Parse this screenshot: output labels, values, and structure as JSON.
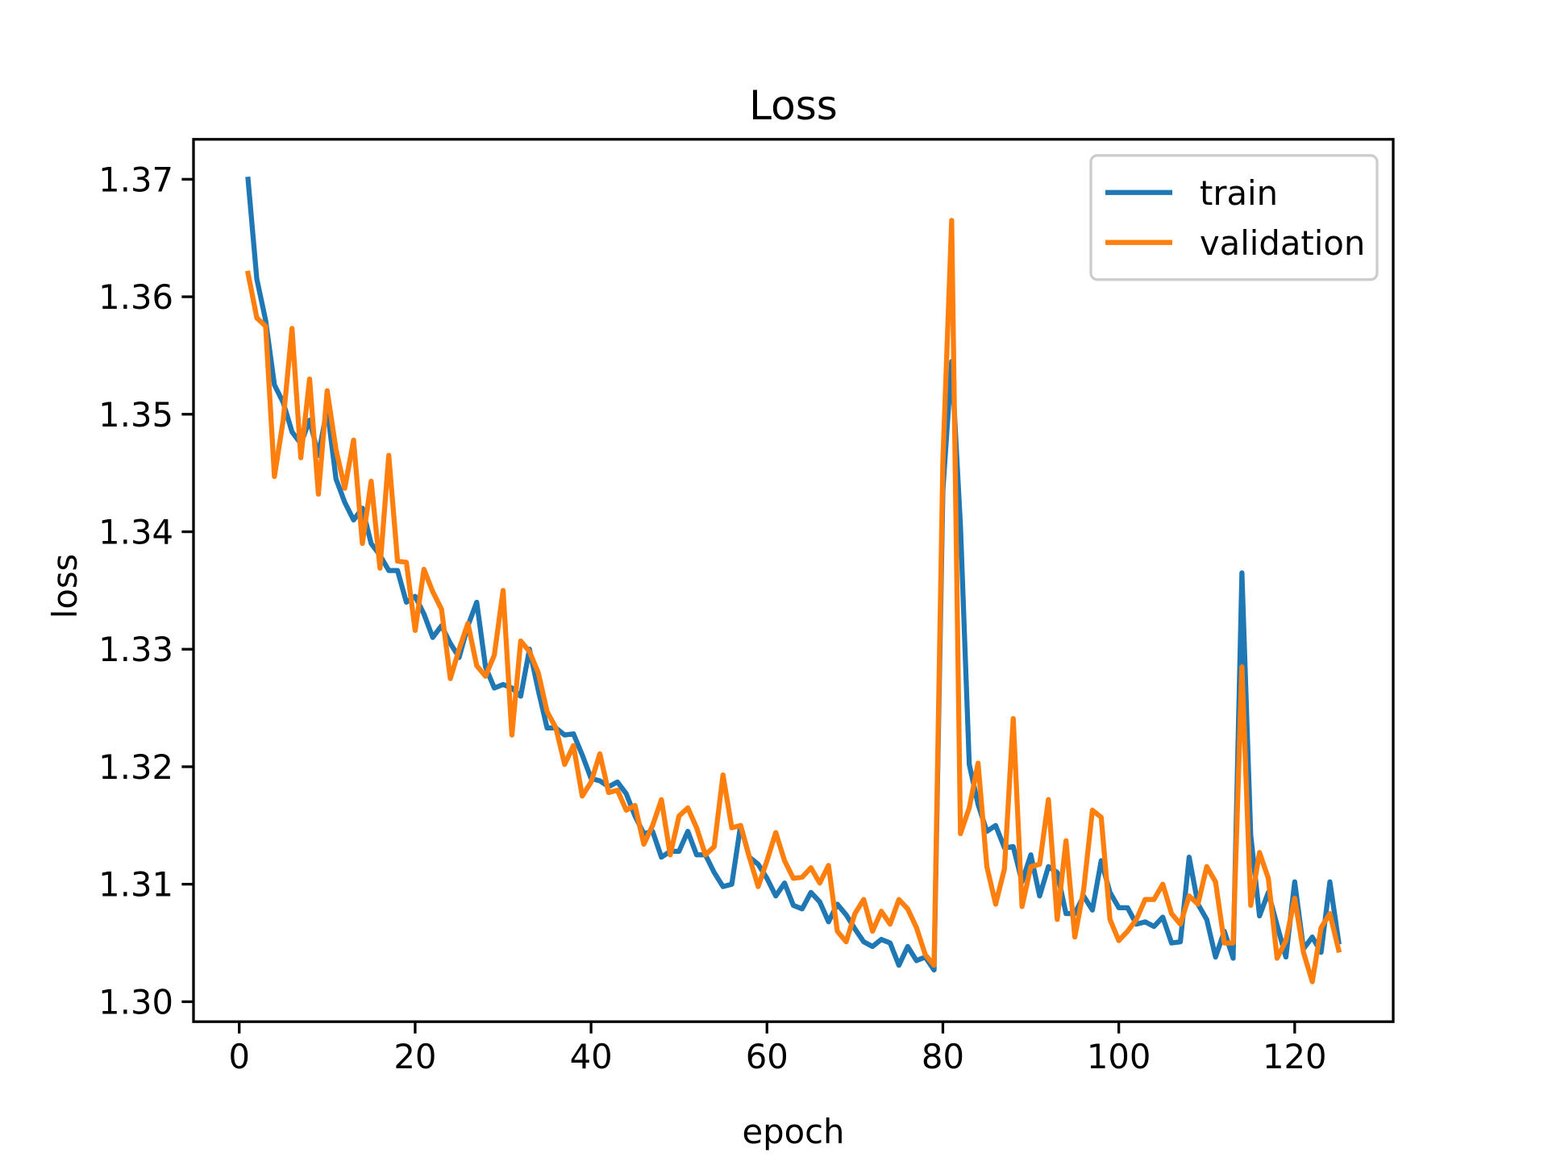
{
  "chart_data": {
    "type": "line",
    "title": "Loss",
    "x_label": "epoch",
    "y_label": "loss",
    "x": [
      1,
      2,
      3,
      4,
      5,
      6,
      7,
      8,
      9,
      10,
      11,
      12,
      13,
      14,
      15,
      16,
      17,
      18,
      19,
      20,
      21,
      22,
      23,
      24,
      25,
      26,
      27,
      28,
      29,
      30,
      31,
      32,
      33,
      34,
      35,
      36,
      37,
      38,
      39,
      40,
      41,
      42,
      43,
      44,
      45,
      46,
      47,
      48,
      49,
      50,
      51,
      52,
      53,
      54,
      55,
      56,
      57,
      58,
      59,
      60,
      61,
      62,
      63,
      64,
      65,
      66,
      67,
      68,
      69,
      70,
      71,
      72,
      73,
      74,
      75,
      76,
      77,
      78,
      79,
      80,
      81,
      82,
      83,
      84,
      85,
      86,
      87,
      88,
      89,
      90,
      91,
      92,
      93,
      94,
      95,
      96,
      97,
      98,
      99,
      100,
      101,
      102,
      103,
      104,
      105,
      106,
      107,
      108,
      109,
      110,
      111,
      112,
      113,
      114,
      115,
      116,
      117,
      118,
      119,
      120,
      121,
      122,
      123,
      124,
      125
    ],
    "series": [
      {
        "name": "train",
        "color": "#1f77b4",
        "values": [
          1.37,
          1.3615,
          1.358,
          1.3525,
          1.351,
          1.3485,
          1.3475,
          1.3495,
          1.3465,
          1.3505,
          1.3445,
          1.3425,
          1.341,
          1.342,
          1.339,
          1.338,
          1.3367,
          1.3367,
          1.334,
          1.3345,
          1.333,
          1.331,
          1.332,
          1.3305,
          1.3293,
          1.332,
          1.334,
          1.3285,
          1.3267,
          1.327,
          1.3267,
          1.326,
          1.33,
          1.3265,
          1.3233,
          1.3233,
          1.3227,
          1.3228,
          1.321,
          1.319,
          1.3188,
          1.3183,
          1.3187,
          1.3177,
          1.3158,
          1.3143,
          1.3145,
          1.3123,
          1.3128,
          1.3128,
          1.3145,
          1.3125,
          1.3125,
          1.311,
          1.3098,
          1.31,
          1.315,
          1.3123,
          1.3117,
          1.3105,
          1.309,
          1.3101,
          1.3082,
          1.3079,
          1.3093,
          1.3085,
          1.3068,
          1.3083,
          1.3074,
          1.3062,
          1.3051,
          1.3047,
          1.3053,
          1.305,
          1.3031,
          1.3047,
          1.3035,
          1.3038,
          1.3027,
          1.3435,
          1.3545,
          1.3405,
          1.3202,
          1.3168,
          1.3145,
          1.315,
          1.3131,
          1.3132,
          1.3102,
          1.3125,
          1.309,
          1.3115,
          1.311,
          1.3075,
          1.3075,
          1.309,
          1.3078,
          1.312,
          1.3093,
          1.308,
          1.308,
          1.3066,
          1.3068,
          1.3064,
          1.3072,
          1.305,
          1.3051,
          1.3123,
          1.3083,
          1.307,
          1.3038,
          1.306,
          1.3037,
          1.3365,
          1.3142,
          1.3073,
          1.3093,
          1.3065,
          1.3038,
          1.3102,
          1.3045,
          1.3055,
          1.3042,
          1.3102,
          1.3051
        ]
      },
      {
        "name": "validation",
        "color": "#ff7f0e",
        "values": [
          1.362,
          1.3582,
          1.3575,
          1.3447,
          1.3495,
          1.3573,
          1.3463,
          1.353,
          1.3432,
          1.352,
          1.347,
          1.3437,
          1.3478,
          1.339,
          1.3443,
          1.3369,
          1.3465,
          1.3375,
          1.3374,
          1.3316,
          1.3368,
          1.3349,
          1.3334,
          1.3275,
          1.33,
          1.3322,
          1.3286,
          1.3277,
          1.3295,
          1.335,
          1.3227,
          1.3307,
          1.3298,
          1.328,
          1.3247,
          1.3233,
          1.3202,
          1.3218,
          1.3175,
          1.3187,
          1.3211,
          1.3178,
          1.318,
          1.3163,
          1.3167,
          1.3134,
          1.315,
          1.3172,
          1.3125,
          1.3158,
          1.3165,
          1.3148,
          1.3125,
          1.3132,
          1.3193,
          1.3148,
          1.315,
          1.3123,
          1.3098,
          1.312,
          1.3144,
          1.312,
          1.3105,
          1.3106,
          1.3114,
          1.3101,
          1.3116,
          1.306,
          1.3051,
          1.3075,
          1.3087,
          1.306,
          1.3077,
          1.3066,
          1.3087,
          1.3079,
          1.3063,
          1.304,
          1.3031,
          1.346,
          1.3665,
          1.3143,
          1.3165,
          1.3203,
          1.3115,
          1.3083,
          1.3113,
          1.3241,
          1.3081,
          1.3115,
          1.3117,
          1.3172,
          1.307,
          1.3137,
          1.3055,
          1.3095,
          1.3163,
          1.3157,
          1.307,
          1.3052,
          1.306,
          1.307,
          1.3087,
          1.3087,
          1.31,
          1.3075,
          1.3066,
          1.309,
          1.3083,
          1.3115,
          1.3102,
          1.305,
          1.305,
          1.3285,
          1.3082,
          1.3127,
          1.3105,
          1.3037,
          1.3052,
          1.3088,
          1.3042,
          1.3017,
          1.3063,
          1.3075,
          1.3044
        ]
      }
    ],
    "xlim": [
      -5.2,
      131.2
    ],
    "xticks": [
      0,
      20,
      40,
      60,
      80,
      100,
      120
    ],
    "ylim": [
      1.2983,
      1.3734
    ],
    "yticks": [
      {
        "value": 1.3,
        "label": "1.30"
      },
      1.31,
      1.32,
      1.33,
      1.34,
      1.35,
      1.36,
      1.37
    ],
    "legend": "upper right",
    "grid": false
  }
}
